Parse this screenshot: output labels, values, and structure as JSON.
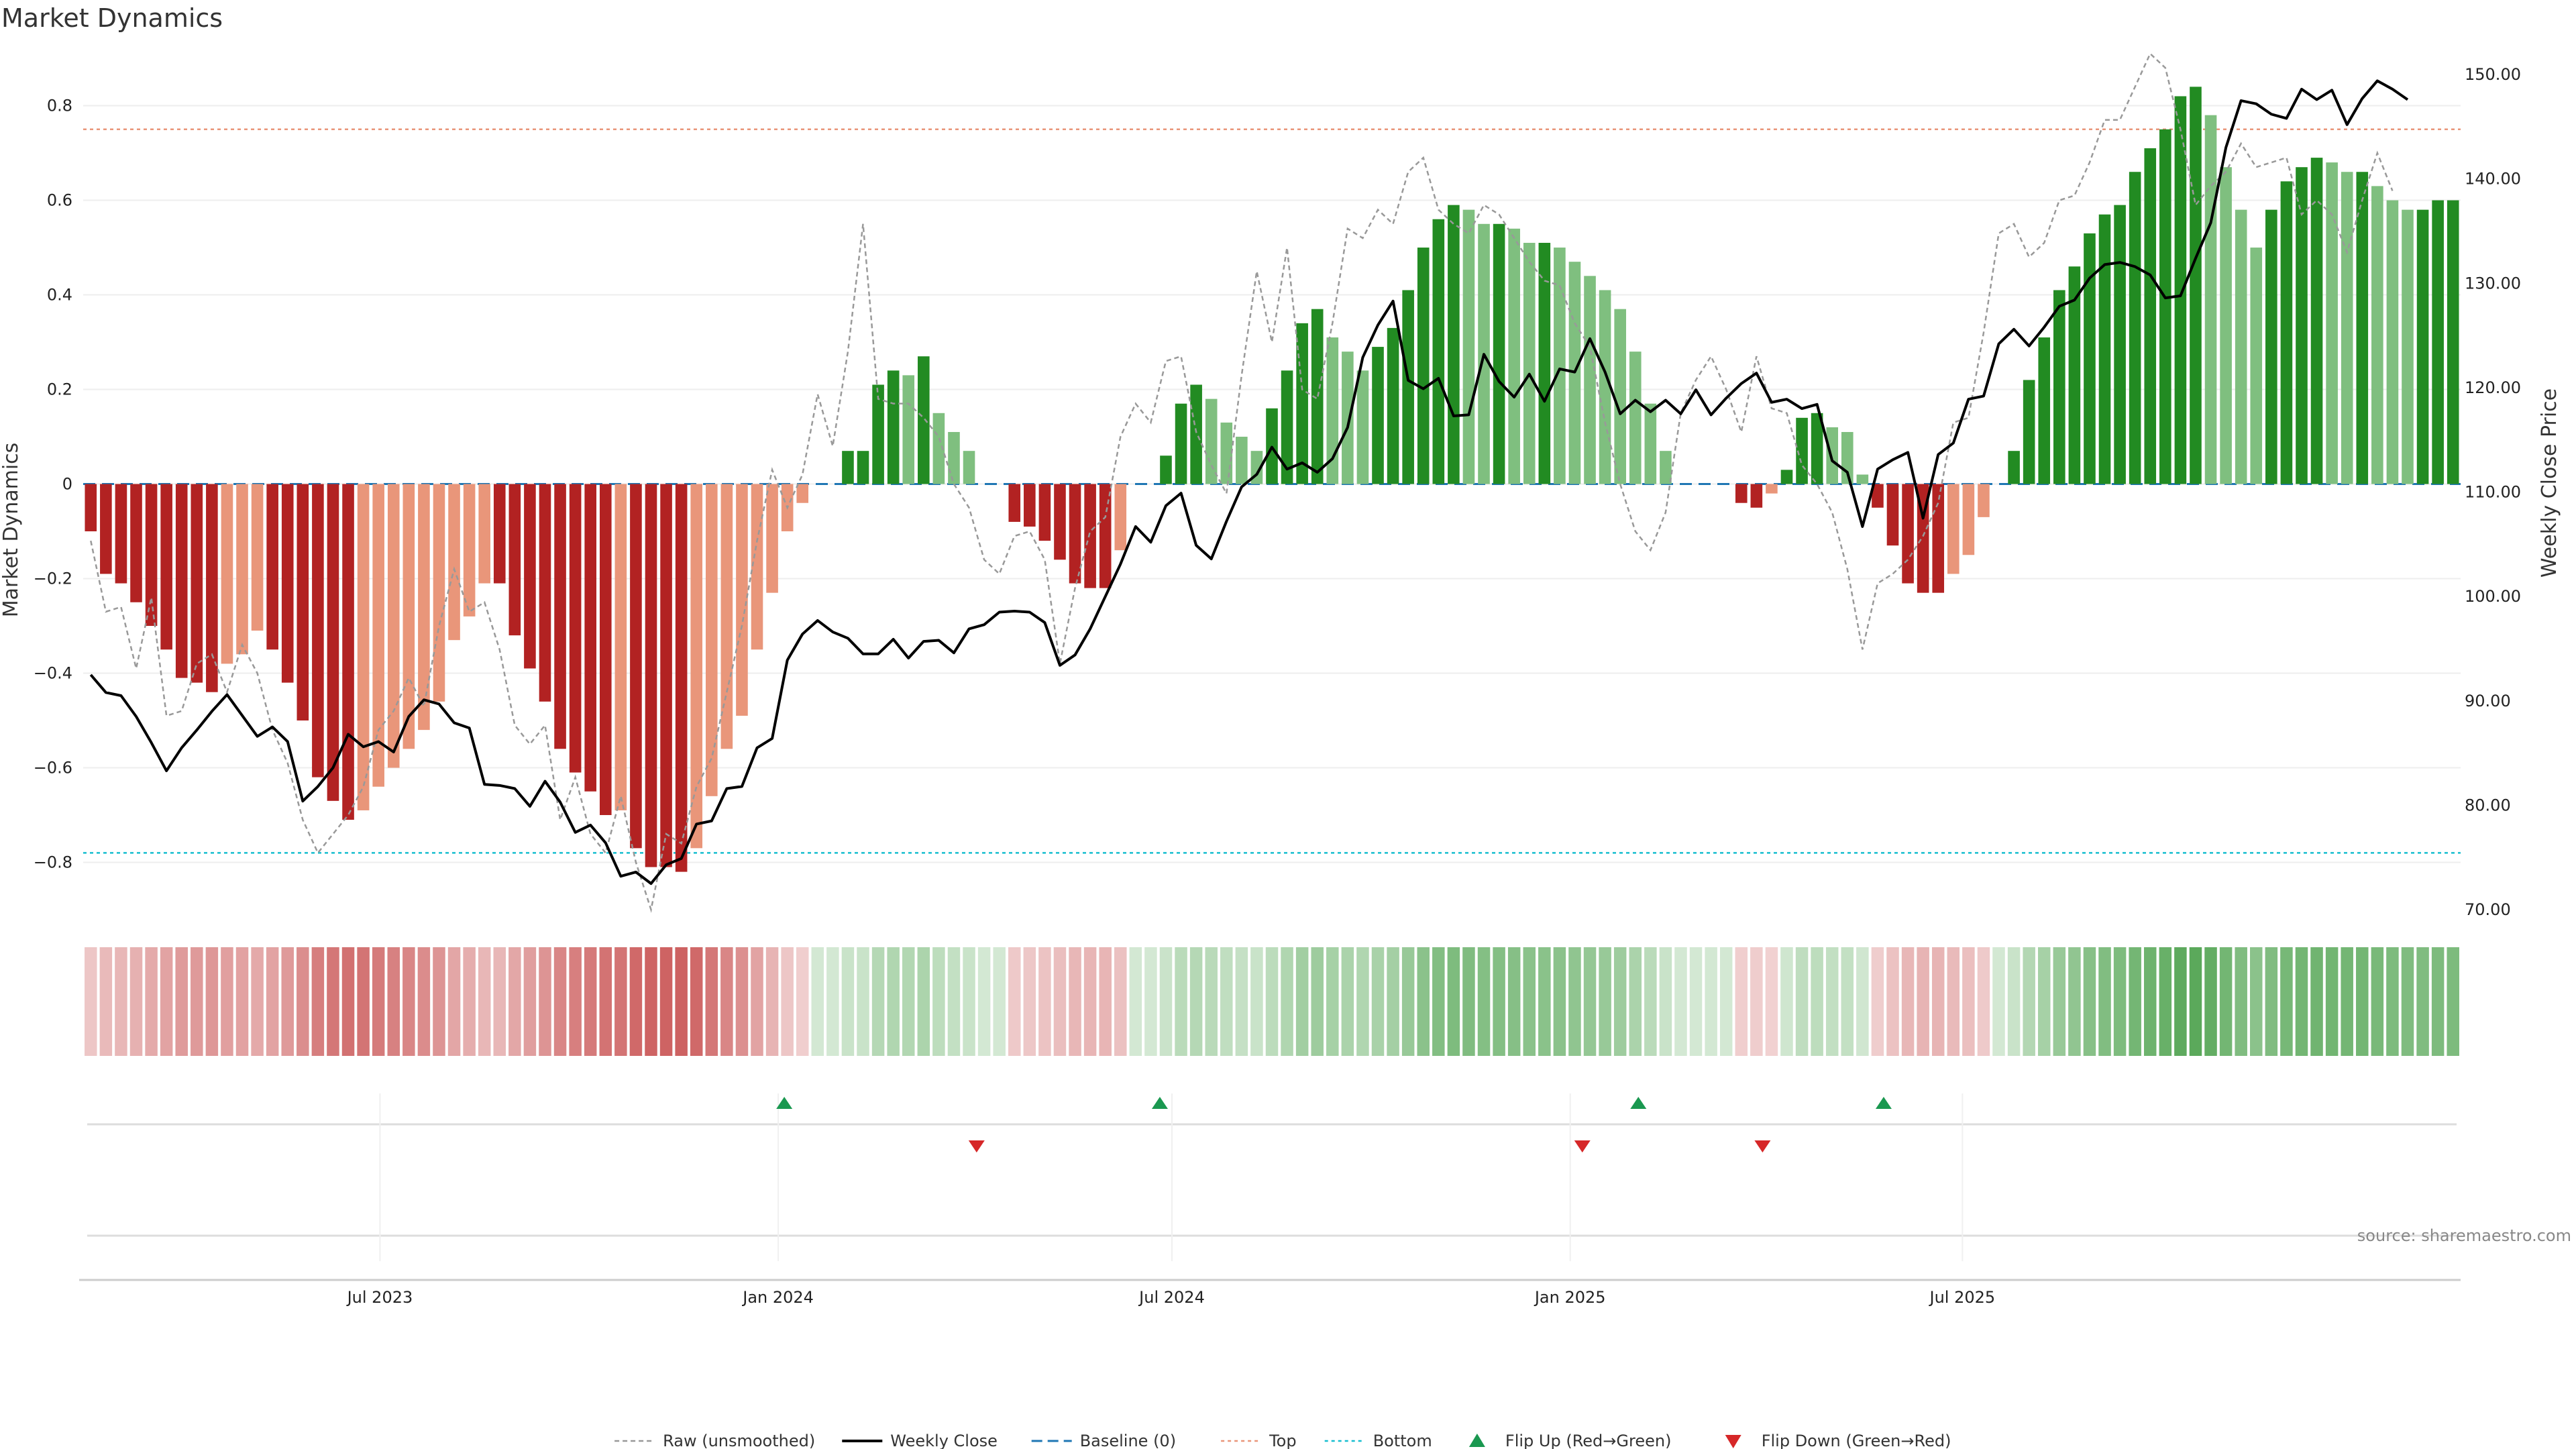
{
  "chart_data": {
    "type": "bar",
    "title": "Market Dynamics",
    "ylabel_left": "Market Dynamics",
    "ylabel_right": "Weekly Close Price",
    "ylim_left": [
      -0.9,
      0.91
    ],
    "ylim_right": [
      70,
      152
    ],
    "yticks_left": [
      "−0.8",
      "−0.6",
      "−0.4",
      "−0.2",
      "0",
      "0.2",
      "0.4",
      "0.6",
      "0.8"
    ],
    "yticks_left_values": [
      -0.8,
      -0.6,
      -0.4,
      -0.2,
      0,
      0.2,
      0.4,
      0.6,
      0.8
    ],
    "yticks_right": [
      "70.00",
      "80.00",
      "90.00",
      "100.00",
      "110.00",
      "120.00",
      "130.00",
      "140.00",
      "150.00"
    ],
    "yticks_right_values": [
      70,
      80,
      90,
      100,
      110,
      120,
      130,
      140,
      150
    ],
    "x_start_week": "2023-02-20",
    "xticks": [
      {
        "label": "Jul 2023",
        "week": 19.1
      },
      {
        "label": "Jan 2024",
        "week": 45.4
      },
      {
        "label": "Jul 2024",
        "week": 71.4
      },
      {
        "label": "Jan 2025",
        "week": 97.7
      },
      {
        "label": "Jul 2025",
        "week": 123.6
      }
    ],
    "top_level": 0.75,
    "bottom_level": -0.78,
    "bar_colors": {
      "dark_red": "#b22222",
      "light_red": "#e9967a",
      "dark_green": "#228b22",
      "light_green": "#7fbf7f"
    },
    "dynamics": [
      -0.1,
      -0.19,
      -0.21,
      -0.25,
      -0.3,
      -0.35,
      -0.41,
      -0.42,
      -0.44,
      -0.38,
      -0.36,
      -0.31,
      -0.35,
      -0.42,
      -0.5,
      -0.62,
      -0.67,
      -0.71,
      -0.69,
      -0.64,
      -0.6,
      -0.56,
      -0.52,
      -0.46,
      -0.33,
      -0.28,
      -0.21,
      -0.21,
      -0.32,
      -0.39,
      -0.46,
      -0.56,
      -0.61,
      -0.65,
      -0.7,
      -0.69,
      -0.77,
      -0.81,
      -0.81,
      -0.82,
      -0.77,
      -0.66,
      -0.56,
      -0.49,
      -0.35,
      -0.23,
      -0.1,
      -0.04,
      0.0,
      0.0,
      0.07,
      0.07,
      0.21,
      0.24,
      0.23,
      0.27,
      0.15,
      0.11,
      0.07,
      0.0,
      0.0,
      -0.08,
      -0.09,
      -0.12,
      -0.16,
      -0.21,
      -0.22,
      -0.22,
      -0.14,
      0.0,
      0.0,
      0.06,
      0.17,
      0.21,
      0.18,
      0.13,
      0.1,
      0.07,
      0.16,
      0.24,
      0.34,
      0.37,
      0.31,
      0.28,
      0.24,
      0.29,
      0.33,
      0.41,
      0.5,
      0.56,
      0.59,
      0.58,
      0.55,
      0.55,
      0.54,
      0.51,
      0.51,
      0.5,
      0.47,
      0.44,
      0.41,
      0.37,
      0.28,
      0.17,
      0.07,
      0.0,
      0.0,
      0.0,
      0.0,
      -0.04,
      -0.05,
      -0.02,
      0.03,
      0.14,
      0.15,
      0.12,
      0.11,
      0.02,
      -0.05,
      -0.13,
      -0.21,
      -0.23,
      -0.23,
      -0.19,
      -0.15,
      -0.07,
      0.0,
      0.07,
      0.22,
      0.31,
      0.41,
      0.46,
      0.53,
      0.57,
      0.59,
      0.66,
      0.71,
      0.75,
      0.82,
      0.84,
      0.78,
      0.67,
      0.58,
      0.5,
      0.58,
      0.64,
      0.67,
      0.69,
      0.68,
      0.66,
      0.66,
      0.63,
      0.6,
      0.58,
      0.58,
      0.6,
      0.6
    ],
    "series": [
      {
        "name": "Raw (unsmoothed)",
        "values": [
          -0.12,
          -0.27,
          -0.26,
          -0.39,
          -0.24,
          -0.49,
          -0.48,
          -0.38,
          -0.36,
          -0.44,
          -0.34,
          -0.4,
          -0.52,
          -0.59,
          -0.71,
          -0.78,
          -0.74,
          -0.7,
          -0.64,
          -0.52,
          -0.48,
          -0.41,
          -0.47,
          -0.3,
          -0.18,
          -0.27,
          -0.25,
          -0.35,
          -0.51,
          -0.55,
          -0.51,
          -0.71,
          -0.62,
          -0.74,
          -0.78,
          -0.66,
          -0.8,
          -0.9,
          -0.74,
          -0.76,
          -0.64,
          -0.58,
          -0.44,
          -0.3,
          -0.12,
          0.03,
          -0.05,
          0.02,
          0.19,
          0.08,
          0.28,
          0.55,
          0.18,
          0.17,
          0.17,
          0.14,
          0.1,
          0.0,
          -0.05,
          -0.16,
          -0.19,
          -0.11,
          -0.1,
          -0.16,
          -0.38,
          -0.22,
          -0.1,
          -0.07,
          0.1,
          0.17,
          0.13,
          0.26,
          0.27,
          0.11,
          0.04,
          -0.02,
          0.23,
          0.45,
          0.3,
          0.5,
          0.2,
          0.18,
          0.34,
          0.54,
          0.52,
          0.58,
          0.55,
          0.66,
          0.69,
          0.58,
          0.55,
          0.53,
          0.59,
          0.57,
          0.52,
          0.47,
          0.43,
          0.42,
          0.34,
          0.29,
          0.13,
          0.0,
          -0.1,
          -0.14,
          -0.06,
          0.15,
          0.22,
          0.27,
          0.2,
          0.11,
          0.27,
          0.16,
          0.15,
          0.04,
          0.0,
          -0.06,
          -0.18,
          -0.35,
          -0.21,
          -0.19,
          -0.16,
          -0.11,
          -0.04,
          0.13,
          0.14,
          0.32,
          0.53,
          0.55,
          0.48,
          0.51,
          0.6,
          0.61,
          0.68,
          0.77,
          0.77,
          0.84,
          0.91,
          0.88,
          0.75,
          0.59,
          0.63,
          0.66,
          0.72,
          0.67,
          0.68,
          0.69,
          0.57,
          0.6,
          0.57,
          0.49,
          0.6,
          0.7,
          0.62
        ]
      },
      {
        "name": "Weekly Close",
        "values": [
          92.5,
          90.8,
          90.5,
          88.5,
          86.0,
          83.3,
          85.5,
          87.2,
          89.0,
          90.6,
          88.6,
          86.6,
          87.5,
          86.1,
          80.4,
          81.8,
          83.6,
          86.8,
          85.6,
          86.1,
          85.1,
          88.5,
          90.1,
          89.7,
          87.9,
          87.4,
          82.0,
          81.9,
          81.6,
          79.9,
          82.3,
          80.3,
          77.4,
          78.1,
          76.4,
          73.2,
          73.6,
          72.5,
          74.3,
          74.9,
          78.2,
          78.5,
          81.6,
          81.8,
          85.5,
          86.4,
          93.9,
          96.4,
          97.7,
          96.6,
          96.0,
          94.5,
          94.5,
          95.9,
          94.1,
          95.7,
          95.8,
          94.6,
          96.9,
          97.3,
          98.5,
          98.6,
          98.5,
          97.5,
          93.4,
          94.4,
          96.9,
          100.0,
          103.1,
          106.7,
          105.2,
          108.7,
          109.9,
          104.9,
          103.6,
          107.2,
          110.5,
          111.7,
          114.3,
          112.2,
          112.8,
          111.9,
          113.2,
          116.2,
          122.9,
          126.0,
          128.3,
          120.7,
          119.9,
          120.9,
          117.3,
          117.4,
          123.2,
          120.6,
          119.1,
          121.3,
          118.7,
          121.8,
          121.5,
          124.7,
          121.5,
          117.5,
          118.8,
          117.7,
          118.8,
          117.5,
          119.8,
          117.4,
          119.0,
          120.4,
          121.4,
          118.6,
          118.9,
          118.0,
          118.4,
          113.0,
          111.9,
          106.7,
          112.2,
          113.1,
          113.8,
          107.5,
          113.6,
          114.7,
          118.9,
          119.2,
          124.2,
          125.6,
          124.0,
          125.8,
          127.8,
          128.4,
          130.5,
          131.8,
          132.0,
          131.6,
          130.8,
          128.6,
          128.8,
          132.4,
          135.8,
          143.0,
          147.5,
          147.2,
          146.2,
          145.8,
          148.6,
          147.6,
          148.5,
          145.2,
          147.7,
          149.4,
          148.6,
          147.6
        ]
      },
      {
        "name": "Baseline (0)",
        "values": [
          0
        ]
      },
      {
        "name": "Top",
        "values": [
          0.75
        ]
      },
      {
        "name": "Bottom",
        "values": [
          -0.78
        ]
      },
      {
        "name": "Flip Up (Red→Green)",
        "weeks": [
          45.8,
          70.6,
          102.2,
          118.4
        ]
      },
      {
        "name": "Flip Down (Green→Red)",
        "weeks": [
          58.5,
          98.5,
          110.4
        ]
      }
    ],
    "legend": {
      "placement": "bottom-center",
      "items": [
        "Raw (unsmoothed)",
        "Weekly Close",
        "Baseline (0)",
        "Top",
        "Bottom",
        "Flip Up (Red→Green)",
        "Flip Down (Green→Red)"
      ]
    },
    "colors": {
      "raw": "#999999",
      "close": "#000000",
      "baseline": "#1f77b4",
      "top": "#e9967a",
      "bottom": "#17becf",
      "flip_up": "#1a9850",
      "flip_down": "#d62728"
    },
    "grid": true,
    "source": "source: sharemaestro.com"
  }
}
